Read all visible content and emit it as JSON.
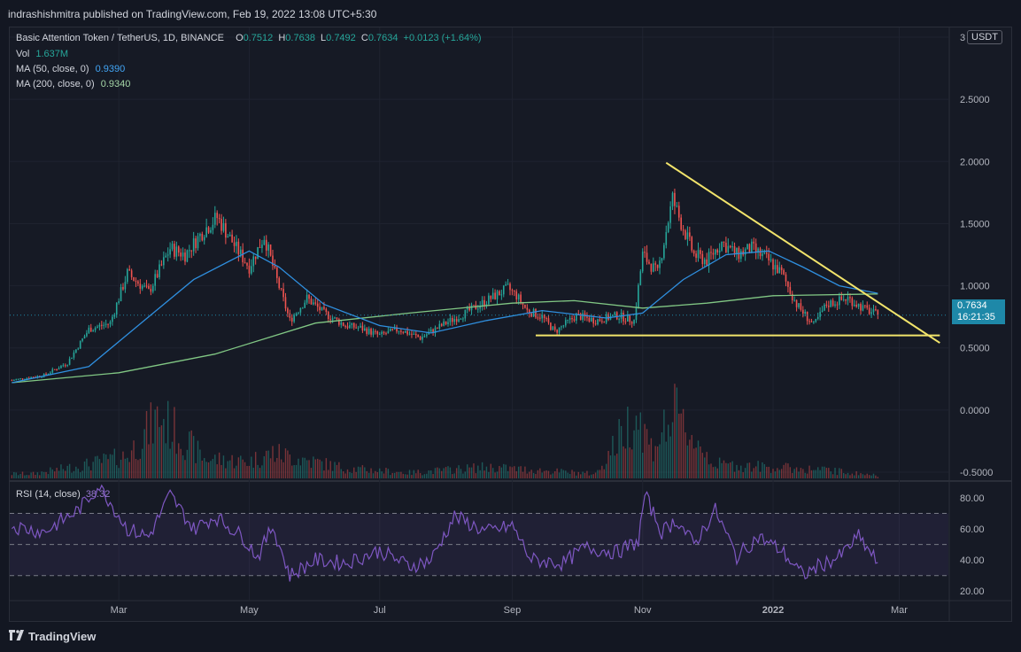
{
  "header": {
    "publish_line": "indrashishmitra published on TradingView.com, Feb 19, 2022 13:08 UTC+5:30"
  },
  "legend": {
    "symbol": "Basic Attention Token / TetherUS, 1D, BINANCE",
    "o_label": "O",
    "o_value": "0.7512",
    "h_label": "H",
    "h_value": "0.7638",
    "l_label": "L",
    "l_value": "0.7492",
    "c_label": "C",
    "c_value": "0.7634",
    "change": "+0.0123 (+1.64%)",
    "vol_label": "Vol",
    "vol_value": "1.637M",
    "ma50_label": "MA (50, close, 0)",
    "ma50_value": "0.9390",
    "ma200_label": "MA (200, close, 0)",
    "ma200_value": "0.9340"
  },
  "rsi_legend": {
    "label": "RSI (14, close)",
    "value": "38.32"
  },
  "currency_button": "USDT",
  "price_tag": {
    "price": "0.7634",
    "countdown": "16:21:35"
  },
  "footer": {
    "brand": "TradingView"
  },
  "colors": {
    "up": "#26a69a",
    "down": "#ef5350",
    "ma50": "#2f8fdf",
    "ma200": "#81c784",
    "rsi": "#7e57c2",
    "trendline": "#f2e46b",
    "background": "#161a25"
  },
  "chart_data": {
    "type": "candlestick",
    "symbol": "Basic Attention Token / TetherUS",
    "interval": "1D",
    "exchange": "BINANCE",
    "price_axis": {
      "ticks": [
        "3",
        "2.5000",
        "2.0000",
        "1.5000",
        "1.0000",
        "0.5000",
        "0.0000",
        "-0.5000"
      ],
      "tick_values": [
        3.0,
        2.5,
        2.0,
        1.5,
        1.0,
        0.5,
        0.0,
        -0.5
      ],
      "ylim": [
        -0.55,
        3.05
      ]
    },
    "time_axis": {
      "ticks": [
        "Mar",
        "May",
        "Jul",
        "Sep",
        "Nov",
        "2022",
        "Mar"
      ],
      "tick_dates": [
        "2021-03-01",
        "2021-05-01",
        "2021-07-01",
        "2021-09-01",
        "2021-11-01",
        "2022-01-01",
        "2022-03-01"
      ],
      "xlim": [
        "2021-01-09",
        "2022-03-24"
      ]
    },
    "last_price": 0.7634,
    "close_series": {
      "dates": [
        "2021-01-10",
        "2021-01-25",
        "2021-02-05",
        "2021-02-15",
        "2021-02-25",
        "2021-03-05",
        "2021-03-15",
        "2021-03-25",
        "2021-04-01",
        "2021-04-10",
        "2021-04-16",
        "2021-04-25",
        "2021-05-01",
        "2021-05-08",
        "2021-05-13",
        "2021-05-20",
        "2021-05-28",
        "2021-06-05",
        "2021-06-15",
        "2021-06-22",
        "2021-07-01",
        "2021-07-10",
        "2021-07-20",
        "2021-08-01",
        "2021-08-10",
        "2021-08-20",
        "2021-08-30",
        "2021-09-03",
        "2021-09-08",
        "2021-09-15",
        "2021-09-21",
        "2021-10-01",
        "2021-10-10",
        "2021-10-20",
        "2021-10-28",
        "2021-11-01",
        "2021-11-08",
        "2021-11-15",
        "2021-11-18",
        "2021-11-25",
        "2021-12-01",
        "2021-12-08",
        "2021-12-15",
        "2021-12-22",
        "2021-12-30",
        "2022-01-05",
        "2022-01-12",
        "2022-01-20",
        "2022-01-26",
        "2022-02-05",
        "2022-02-12",
        "2022-02-19"
      ],
      "close": [
        0.24,
        0.28,
        0.38,
        0.65,
        0.7,
        1.1,
        0.95,
        1.3,
        1.25,
        1.45,
        1.55,
        1.3,
        1.15,
        1.4,
        1.1,
        0.72,
        0.9,
        0.78,
        0.68,
        0.66,
        0.6,
        0.65,
        0.58,
        0.7,
        0.78,
        0.88,
        0.98,
        0.92,
        0.8,
        0.75,
        0.63,
        0.76,
        0.72,
        0.76,
        0.72,
        1.25,
        1.1,
        1.7,
        1.55,
        1.25,
        1.2,
        1.35,
        1.25,
        1.3,
        1.2,
        1.1,
        0.85,
        0.68,
        0.85,
        0.9,
        0.82,
        0.7634
      ]
    },
    "ma50": {
      "dates": [
        "2021-01-10",
        "2021-02-15",
        "2021-03-15",
        "2021-04-05",
        "2021-05-01",
        "2021-05-15",
        "2021-06-05",
        "2021-07-01",
        "2021-07-25",
        "2021-08-20",
        "2021-09-15",
        "2021-10-15",
        "2021-11-01",
        "2021-11-20",
        "2021-12-10",
        "2021-12-30",
        "2022-01-15",
        "2022-02-01",
        "2022-02-19"
      ],
      "values": [
        0.22,
        0.35,
        0.75,
        1.05,
        1.28,
        1.15,
        0.85,
        0.68,
        0.62,
        0.72,
        0.8,
        0.74,
        0.78,
        1.05,
        1.25,
        1.28,
        1.15,
        1.0,
        0.939
      ]
    },
    "ma200": {
      "dates": [
        "2021-01-10",
        "2021-03-01",
        "2021-04-15",
        "2021-06-01",
        "2021-07-15",
        "2021-09-01",
        "2021-09-30",
        "2021-11-01",
        "2021-12-01",
        "2022-01-01",
        "2022-02-19"
      ],
      "values": [
        0.22,
        0.3,
        0.45,
        0.7,
        0.78,
        0.86,
        0.88,
        0.82,
        0.86,
        0.92,
        0.934
      ]
    },
    "rsi": {
      "ticks": [
        "80.00",
        "60.00",
        "40.00",
        "20.00"
      ],
      "tick_values": [
        80,
        60,
        40,
        20
      ],
      "bands": [
        70,
        50,
        30
      ],
      "last_value": 38.32,
      "dates": [
        "2021-01-10",
        "2021-01-25",
        "2021-02-10",
        "2021-02-20",
        "2021-03-05",
        "2021-03-15",
        "2021-03-25",
        "2021-04-05",
        "2021-04-15",
        "2021-04-28",
        "2021-05-05",
        "2021-05-12",
        "2021-05-20",
        "2021-06-01",
        "2021-06-15",
        "2021-07-01",
        "2021-07-15",
        "2021-07-25",
        "2021-08-05",
        "2021-08-20",
        "2021-09-01",
        "2021-09-10",
        "2021-09-25",
        "2021-10-05",
        "2021-10-20",
        "2021-10-30",
        "2021-11-02",
        "2021-11-10",
        "2021-11-17",
        "2021-11-25",
        "2021-12-05",
        "2021-12-15",
        "2021-12-25",
        "2022-01-05",
        "2022-01-15",
        "2022-01-22",
        "2022-02-01",
        "2022-02-10",
        "2022-02-19"
      ],
      "values": [
        62,
        58,
        72,
        88,
        60,
        55,
        82,
        60,
        68,
        55,
        42,
        62,
        30,
        40,
        38,
        46,
        36,
        40,
        68,
        58,
        62,
        40,
        38,
        48,
        45,
        52,
        82,
        58,
        66,
        50,
        72,
        42,
        55,
        46,
        30,
        36,
        42,
        55,
        38.32
      ]
    },
    "volume": {
      "dates": [
        "2021-01-20",
        "2021-02-15",
        "2021-03-05",
        "2021-03-20",
        "2021-04-10",
        "2021-05-01",
        "2021-05-12",
        "2021-06-15",
        "2021-07-15",
        "2021-08-20",
        "2021-09-10",
        "2021-10-10",
        "2021-10-29",
        "2021-11-05",
        "2021-11-16",
        "2021-12-05",
        "2021-12-30",
        "2022-01-25",
        "2022-02-19"
      ],
      "values": [
        8,
        25,
        40,
        110,
        35,
        30,
        45,
        18,
        10,
        20,
        15,
        8,
        118,
        55,
        112,
        25,
        20,
        15,
        5
      ]
    },
    "annotations": {
      "descending_trendline": {
        "from": [
          "2021-11-12",
          1.99
        ],
        "to": [
          "2022-03-20",
          0.54
        ]
      },
      "horizontal_support": {
        "from": [
          "2021-09-12",
          0.6
        ],
        "to": [
          "2022-03-20",
          0.6
        ]
      }
    }
  }
}
